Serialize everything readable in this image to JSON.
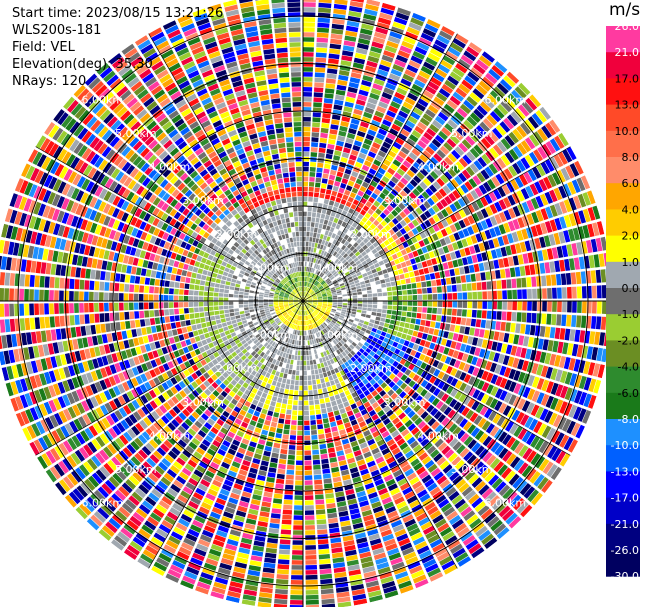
{
  "header": {
    "start_time": "Start time: 2023/08/15 13:21:26",
    "instrument": "WLS200s-181",
    "field": "Field: VEL",
    "elevation": "Elevation(deg): 35.30",
    "nrays": "NRays: 120"
  },
  "chart_data": {
    "type": "ppi",
    "field": "VEL",
    "unit": "m/s",
    "n_rays": 120,
    "range_rings_km": [
      {
        "range": 1.0,
        "label": "1.00km"
      },
      {
        "range": 2.0,
        "label": "2.00km"
      },
      {
        "range": 3.0,
        "label": "3.00km"
      },
      {
        "range": 4.0,
        "label": "4.00km"
      },
      {
        "range": 5.0,
        "label": "5.00km"
      },
      {
        "range": 6.0,
        "label": "6.00km"
      }
    ],
    "max_range_km": 6.5,
    "colorbar": {
      "ticks": [
        "26.0",
        "21.0",
        "17.0",
        "13.0",
        "10.0",
        "8.0",
        "6.0",
        "4.0",
        "2.0",
        "1.0",
        "0.0",
        "-1.0",
        "-2.0",
        "-4.0",
        "-6.0",
        "-8.0",
        "-10.0",
        "-13.0",
        "-17.0",
        "-21.0",
        "-26.0",
        "-30.0"
      ],
      "colors": [
        "#ff3aa0",
        "#f0003c",
        "#ff1010",
        "#ff4a28",
        "#ff6f4a",
        "#ff8c6a",
        "#ffa600",
        "#ffcc00",
        "#ffff00",
        "#a0a8b0",
        "#6e6e6e",
        "#9acd32",
        "#6b8e23",
        "#2e8b2e",
        "#1a7a1a",
        "#1e90ff",
        "#0060ff",
        "#0000ff",
        "#0000c8",
        "#000080",
        "#000060"
      ]
    },
    "regions": {
      "inner_km": 0.3,
      "near_gray_km": [
        0.3,
        2.4
      ],
      "near_noise_km": [
        2.4,
        6.5
      ]
    }
  }
}
